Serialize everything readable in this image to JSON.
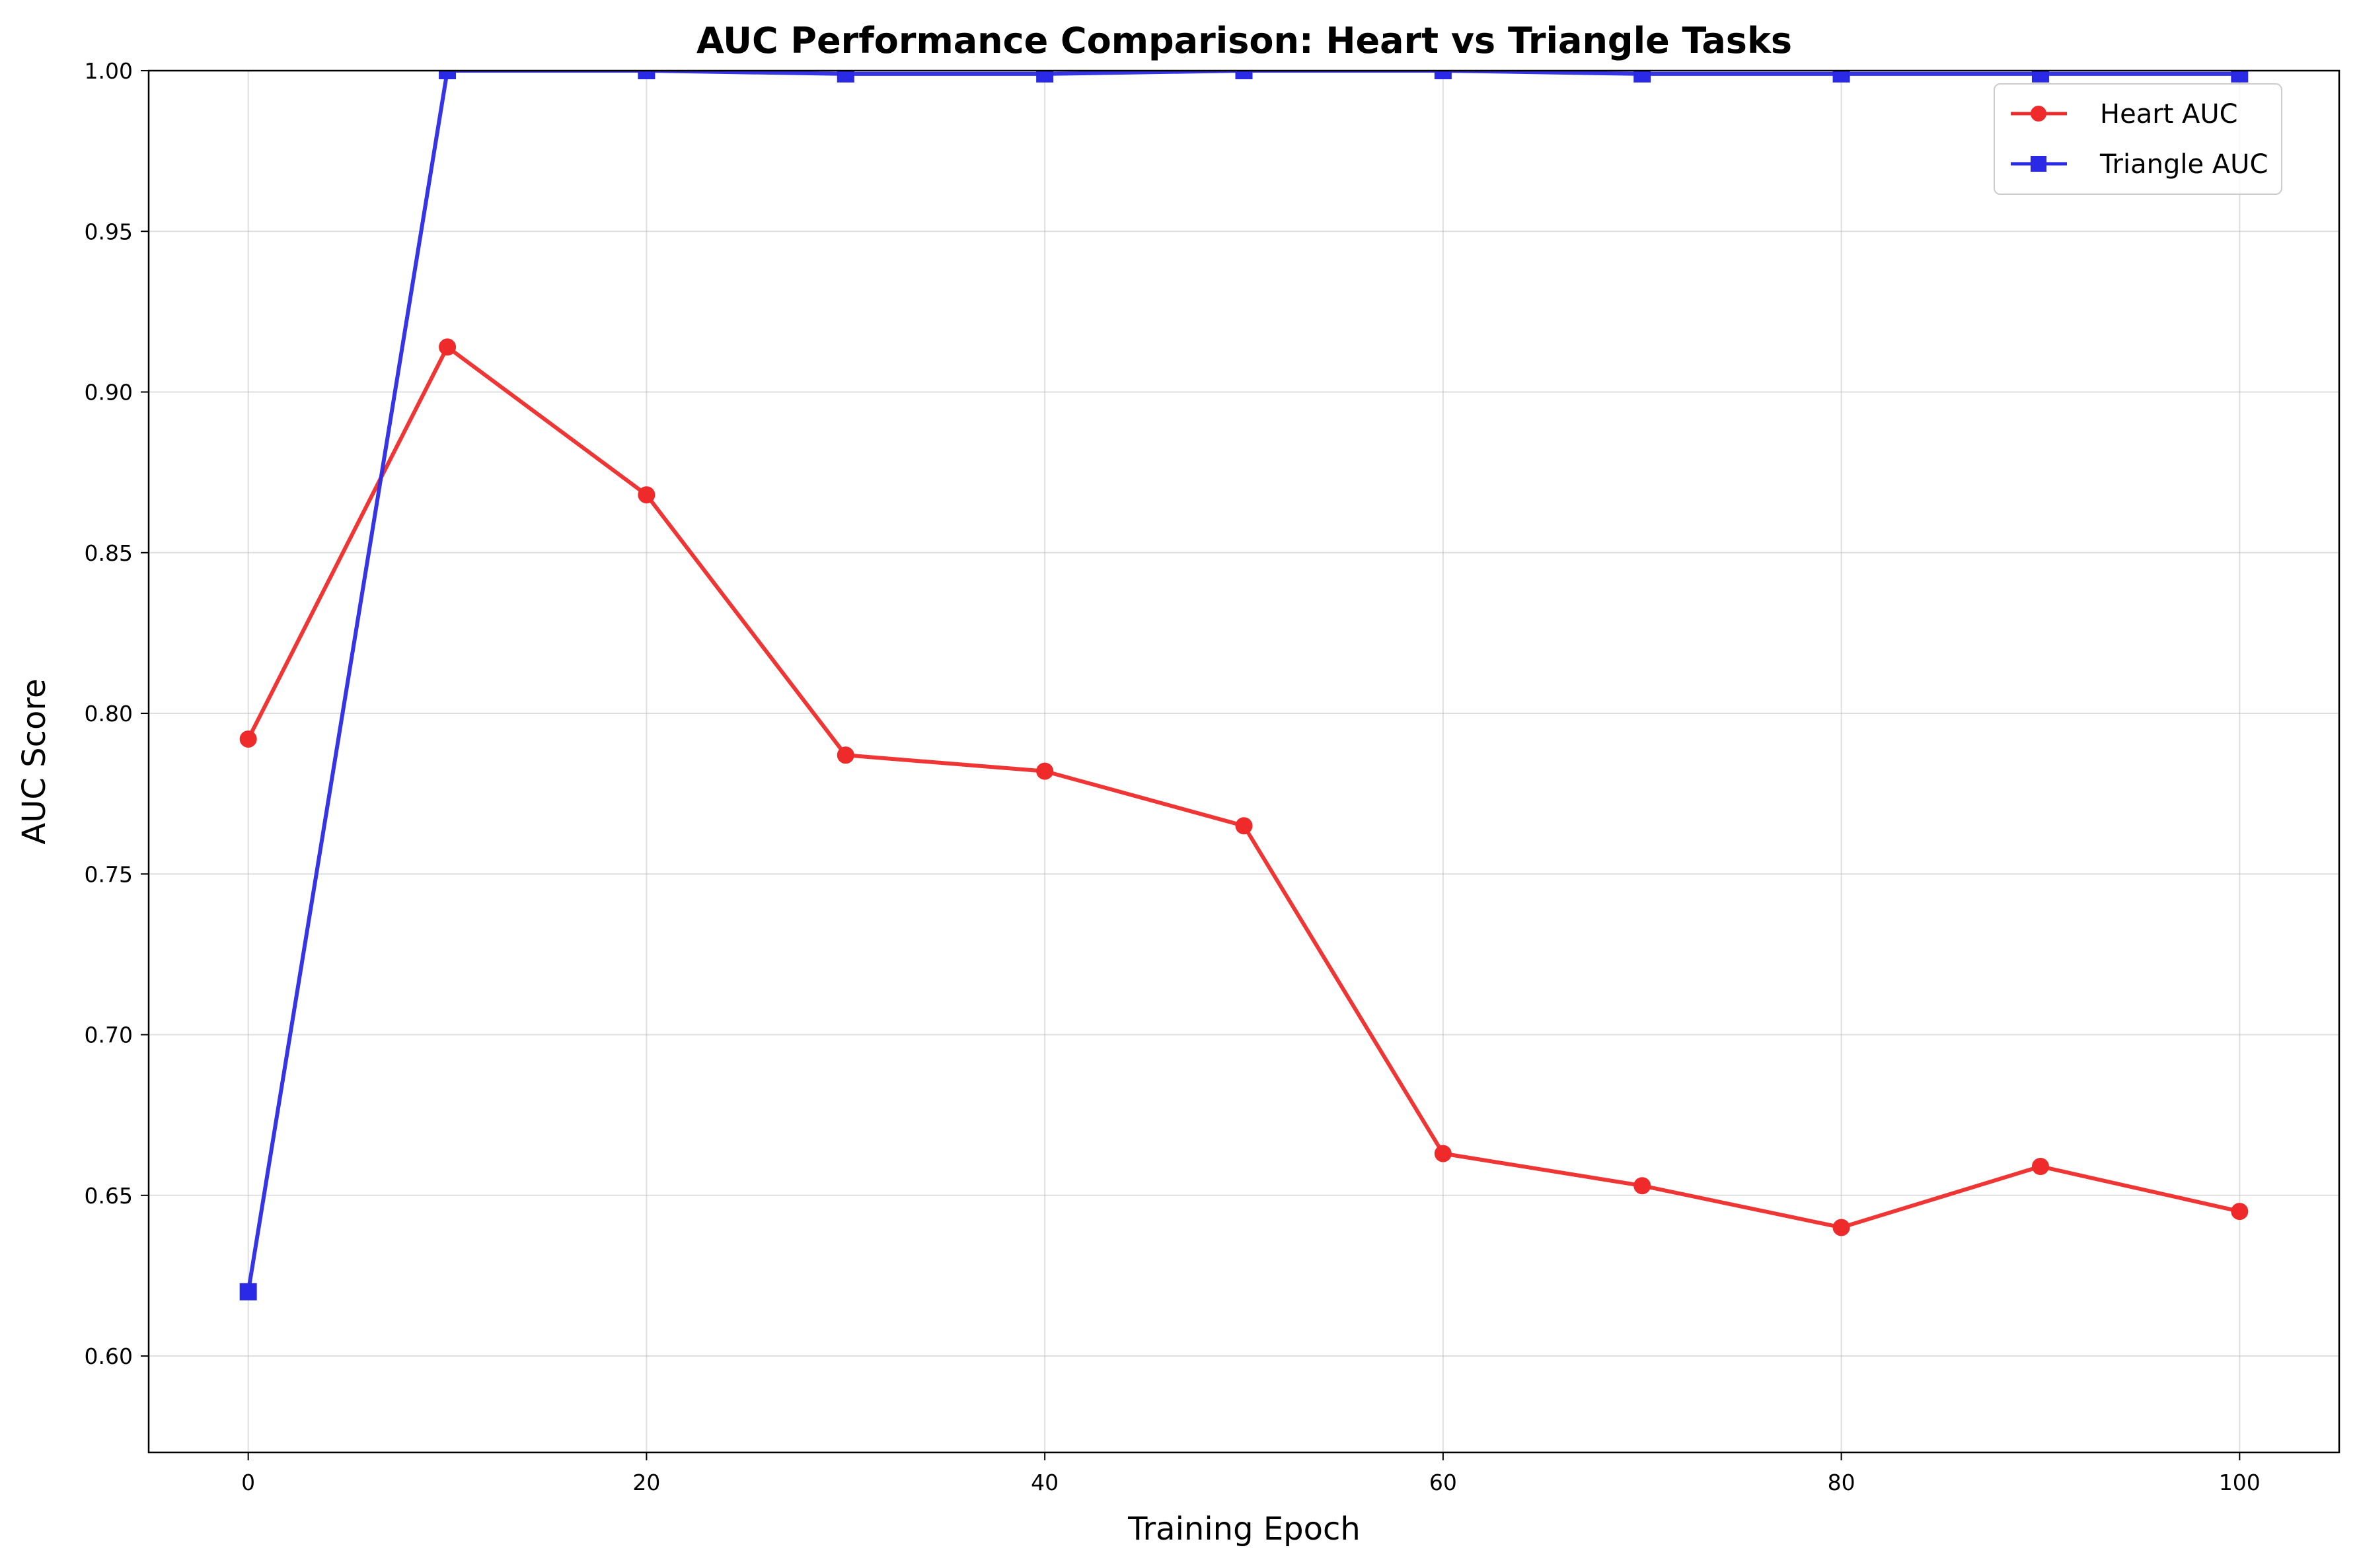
{
  "chart_data": {
    "type": "line",
    "title": "AUC Performance Comparison: Heart vs Triangle Tasks",
    "xlabel": "Training Epoch",
    "ylabel": "AUC Score",
    "x": [
      0,
      10,
      20,
      30,
      40,
      50,
      60,
      70,
      80,
      90,
      100
    ],
    "xlim": [
      -5,
      105
    ],
    "ylim": [
      0.57,
      1.0
    ],
    "xticks": [
      0,
      20,
      40,
      60,
      80,
      100
    ],
    "xtick_labels": [
      "0",
      "20",
      "40",
      "60",
      "80",
      "100"
    ],
    "yticks": [
      0.6,
      0.65,
      0.7,
      0.75,
      0.8,
      0.85,
      0.9,
      0.95,
      1.0
    ],
    "ytick_labels": [
      "0.60",
      "0.65",
      "0.70",
      "0.75",
      "0.80",
      "0.85",
      "0.90",
      "0.95",
      "1.00"
    ],
    "grid": true,
    "legend_position": "top-right",
    "series": [
      {
        "name": "Heart AUC",
        "marker": "circle",
        "color": "#ef2a2a",
        "values": [
          0.792,
          0.914,
          0.868,
          0.787,
          0.782,
          0.765,
          0.663,
          0.653,
          0.64,
          0.659,
          0.645
        ]
      },
      {
        "name": "Triangle AUC",
        "marker": "square",
        "color": "#2a2ae6",
        "values": [
          0.62,
          1.0,
          1.0,
          0.999,
          0.999,
          1.0,
          1.0,
          0.999,
          0.999,
          0.999,
          0.999
        ]
      }
    ]
  }
}
